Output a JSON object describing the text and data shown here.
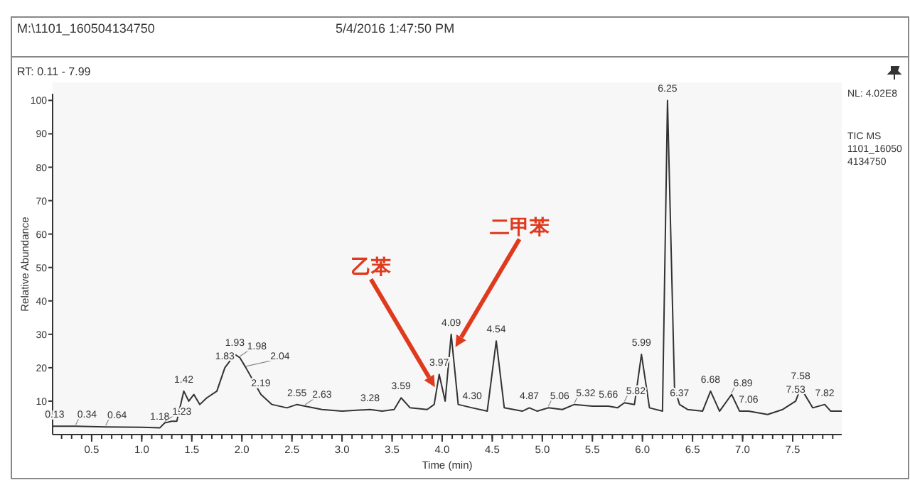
{
  "chart_data": {
    "type": "line",
    "title": "M:\\1101_160504134750",
    "subtitle": "5/4/2016 1:47:50 PM",
    "xlabel": "Time (min)",
    "ylabel": "Relative Abundance",
    "x": [
      0.11,
      0.13,
      0.34,
      0.64,
      1.0,
      1.18,
      1.23,
      1.3,
      1.35,
      1.42,
      1.47,
      1.52,
      1.58,
      1.65,
      1.75,
      1.83,
      1.93,
      1.98,
      2.04,
      2.19,
      2.3,
      2.45,
      2.55,
      2.63,
      2.8,
      3.0,
      3.28,
      3.4,
      3.52,
      3.59,
      3.68,
      3.85,
      3.92,
      3.97,
      4.03,
      4.09,
      4.16,
      4.3,
      4.45,
      4.54,
      4.62,
      4.8,
      4.87,
      4.95,
      5.06,
      5.2,
      5.32,
      5.5,
      5.66,
      5.75,
      5.82,
      5.92,
      5.99,
      6.07,
      6.2,
      6.25,
      6.32,
      6.37,
      6.45,
      6.6,
      6.68,
      6.77,
      6.89,
      6.97,
      7.06,
      7.25,
      7.4,
      7.53,
      7.58,
      7.7,
      7.82,
      7.88,
      7.99
    ],
    "series": [
      {
        "color": "#333333",
        "values": [
          2.5,
          2.5,
          2.5,
          2.3,
          2.2,
          2.0,
          3.5,
          4,
          4,
          13,
          10,
          12,
          9,
          11,
          13,
          20,
          24,
          23,
          20,
          12,
          9,
          8,
          9,
          8.5,
          7.5,
          7,
          7.5,
          7,
          7.5,
          11,
          8,
          7.5,
          9,
          18,
          10,
          30,
          9,
          8,
          7,
          28,
          8,
          7,
          8,
          7,
          8,
          7.5,
          9,
          8.5,
          8.5,
          8,
          9.5,
          9,
          24,
          8,
          7,
          100,
          14,
          9,
          7.5,
          7,
          13,
          7,
          12,
          7,
          7,
          6,
          7.5,
          10,
          14,
          8,
          9,
          7,
          7
        ]
      }
    ],
    "xlim": [
      0.11,
      7.99
    ],
    "xticks": [
      0.5,
      {
        "value": 1,
        "label": "1.0"
      },
      1.5,
      {
        "value": 2,
        "label": "2.0"
      },
      2.5,
      {
        "value": 3,
        "label": "3.0"
      },
      3.5,
      {
        "value": 4,
        "label": "4.0"
      },
      4.5,
      {
        "value": 5,
        "label": "5.0"
      },
      5.5,
      {
        "value": 6,
        "label": "6.0"
      },
      6.5,
      {
        "value": 7,
        "label": "7.0"
      },
      7.5
    ],
    "ylim": [
      0,
      102
    ],
    "yticks": [
      10,
      20,
      30,
      40,
      50,
      60,
      70,
      80,
      90,
      100
    ],
    "grid": false,
    "marker": "none",
    "line_style": "solid",
    "annotations": [
      "RT: 0.11 - 7.99",
      "NL: 4.02E8",
      "TIC MS 1101_160504134750",
      {
        "text": "乙苯",
        "x": 3.97,
        "y": 18
      },
      {
        "text": "二甲苯",
        "x": 4.09,
        "y": 30
      },
      {
        "text": "0.13",
        "x": 0.13,
        "y": 2.5
      },
      {
        "text": "0.34",
        "x": 0.34,
        "y": 2.5
      },
      {
        "text": "0.64",
        "x": 0.64,
        "y": 2.3
      },
      {
        "text": "1.18",
        "x": 1.18,
        "y": 2.0
      },
      {
        "text": "1.23",
        "x": 1.23,
        "y": 3.5
      },
      {
        "text": "1.42",
        "x": 1.42,
        "y": 13
      },
      {
        "text": "1.83",
        "x": 1.83,
        "y": 20
      },
      {
        "text": "1.93",
        "x": 1.93,
        "y": 24
      },
      {
        "text": "1.98",
        "x": 1.98,
        "y": 23
      },
      {
        "text": "2.04",
        "x": 2.04,
        "y": 20
      },
      {
        "text": "2.19",
        "x": 2.19,
        "y": 12
      },
      {
        "text": "2.55",
        "x": 2.55,
        "y": 9
      },
      {
        "text": "2.63",
        "x": 2.63,
        "y": 8.5
      },
      {
        "text": "3.28",
        "x": 3.28,
        "y": 7.5
      },
      {
        "text": "3.59",
        "x": 3.59,
        "y": 11
      },
      {
        "text": "3.97",
        "x": 3.97,
        "y": 18
      },
      {
        "text": "4.09",
        "x": 4.09,
        "y": 30
      },
      {
        "text": "4.30",
        "x": 4.3,
        "y": 8
      },
      {
        "text": "4.54",
        "x": 4.54,
        "y": 28
      },
      {
        "text": "4.87",
        "x": 4.87,
        "y": 8
      },
      {
        "text": "5.06",
        "x": 5.06,
        "y": 8
      },
      {
        "text": "5.32",
        "x": 5.32,
        "y": 9
      },
      {
        "text": "5.66",
        "x": 5.66,
        "y": 8.5
      },
      {
        "text": "5.82",
        "x": 5.82,
        "y": 9.5
      },
      {
        "text": "5.99",
        "x": 5.99,
        "y": 24
      },
      {
        "text": "6.25",
        "x": 6.25,
        "y": 100
      },
      {
        "text": "6.37",
        "x": 6.37,
        "y": 9
      },
      {
        "text": "6.68",
        "x": 6.68,
        "y": 13
      },
      {
        "text": "6.89",
        "x": 6.89,
        "y": 12
      },
      {
        "text": "7.06",
        "x": 7.06,
        "y": 7
      },
      {
        "text": "7.53",
        "x": 7.53,
        "y": 10
      },
      {
        "text": "7.58",
        "x": 7.58,
        "y": 14
      },
      {
        "text": "7.82",
        "x": 7.82,
        "y": 9
      }
    ]
  }
}
